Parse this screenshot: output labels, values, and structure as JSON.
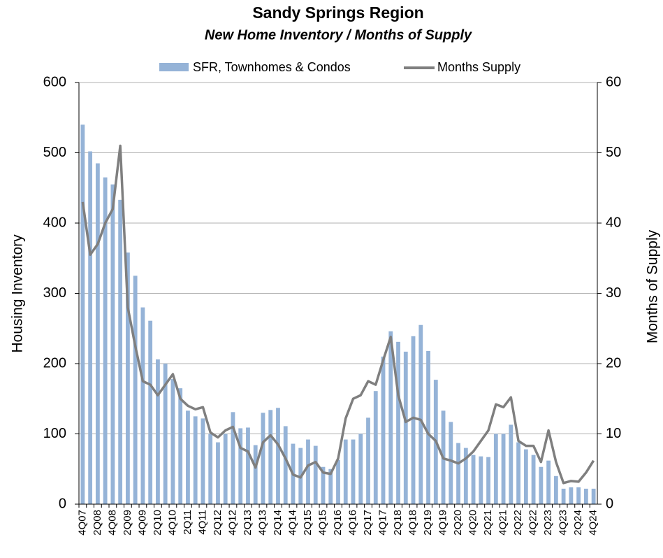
{
  "chart_data": {
    "type": "bar_line",
    "title": "Sandy Springs Region",
    "subtitle": "New Home Inventory / Months of Supply",
    "y_label": "Housing Inventory",
    "y2_label": "Months of Supply",
    "categories": [
      "4Q07",
      null,
      "2Q08",
      null,
      "4Q08",
      null,
      "2Q09",
      null,
      "4Q09",
      null,
      "2Q10",
      null,
      "4Q10",
      null,
      "2Q11",
      null,
      "4Q11",
      null,
      "2Q12",
      null,
      "4Q12",
      null,
      "2Q13",
      null,
      "4Q13",
      null,
      "2Q14",
      null,
      "4Q14",
      null,
      "2Q15",
      null,
      "4Q15",
      null,
      "2Q16",
      null,
      "4Q16",
      null,
      "2Q17",
      null,
      "4Q17",
      null,
      "2Q18",
      null,
      "4Q18",
      null,
      "2Q19",
      null,
      "4Q19",
      null,
      "2Q20",
      null,
      "4Q20",
      null,
      "2Q21",
      null,
      "4Q21",
      null,
      "2Q22",
      null,
      "4Q22",
      null,
      "2Q23",
      null,
      "4Q23",
      null,
      "2Q24",
      null,
      "4Q24"
    ],
    "series": [
      {
        "name": "SFR, Townhomes & Condos",
        "color": "#95b3d7",
        "type": "bar",
        "axis": "y",
        "values": [
          540,
          502,
          485,
          465,
          455,
          433,
          358,
          325,
          280,
          261,
          206,
          200,
          178,
          165,
          133,
          125,
          122,
          100,
          88,
          100,
          131,
          108,
          109,
          84,
          130,
          134,
          137,
          111,
          86,
          80,
          92,
          83,
          53,
          50,
          63,
          92,
          92,
          100,
          123,
          161,
          210,
          246,
          231,
          217,
          239,
          255,
          218,
          177,
          133,
          117,
          87,
          80,
          70,
          68,
          67,
          100,
          100,
          113,
          88,
          78,
          70,
          53,
          62,
          40,
          22,
          24,
          24,
          22,
          22
        ]
      },
      {
        "name": "Months Supply",
        "color": "#7f7f7f",
        "type": "line",
        "axis": "y2",
        "values": [
          43,
          35.5,
          37,
          40,
          42,
          51,
          28,
          22.5,
          17.5,
          17,
          15.5,
          17,
          18.5,
          15,
          14,
          13.5,
          13.8,
          10.2,
          9.5,
          10.5,
          11,
          8,
          7.5,
          5.2,
          8.8,
          9.8,
          8.5,
          6.5,
          4.2,
          3.8,
          5.5,
          6,
          4.5,
          4.3,
          6.5,
          12.2,
          15,
          15.5,
          17.5,
          17,
          20.5,
          23.8,
          15.5,
          11.7,
          12.3,
          12,
          10,
          9,
          6.5,
          6.2,
          5.8,
          6.5,
          7.5,
          9,
          10.5,
          14.2,
          13.8,
          15.2,
          9,
          8.3,
          8.3,
          6,
          10.5,
          6,
          3,
          3.3,
          3.2,
          4.5,
          6.2
        ]
      }
    ],
    "ylim": [
      0,
      600
    ],
    "yticks": [
      0,
      100,
      200,
      300,
      400,
      500,
      600
    ],
    "y2lim": [
      0,
      60
    ],
    "y2ticks": [
      0,
      10,
      20,
      30,
      40,
      50,
      60
    ],
    "grid": true,
    "legend": "top"
  }
}
